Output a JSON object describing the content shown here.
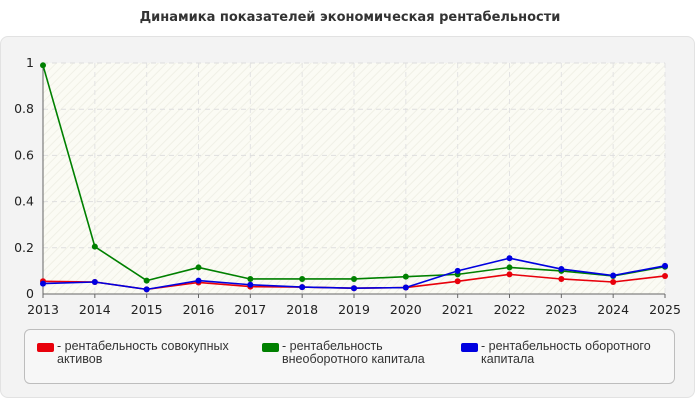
{
  "chart_data": {
    "type": "line",
    "title": "Динамика показателей экономическая рентабельности",
    "x": [
      "2013",
      "2014",
      "2015",
      "2016",
      "2017",
      "2018",
      "2019",
      "2020",
      "2021",
      "2022",
      "2023",
      "2024",
      "2025"
    ],
    "ylim": [
      0,
      1
    ],
    "yticks": [
      "0",
      "0.2",
      "0.4",
      "0.6",
      "0.8",
      "1"
    ],
    "grid": true,
    "legend_position": "bottom",
    "series": [
      {
        "name": "рентабельность совокупных активов",
        "legend_lines": [
          "- рентабельность совокупных",
          "активов"
        ],
        "color": "#e8000b",
        "values": [
          0.055,
          0.052,
          0.02,
          0.05,
          0.032,
          0.03,
          0.025,
          0.028,
          0.055,
          0.085,
          0.065,
          0.052,
          0.078
        ]
      },
      {
        "name": "рентабельность внеоборотного капитала",
        "legend_lines": [
          "- рентабельность",
          "внеоборотного капитала"
        ],
        "color": "#008000",
        "values": [
          0.99,
          0.205,
          0.058,
          0.115,
          0.065,
          0.065,
          0.065,
          0.075,
          0.085,
          0.115,
          0.1,
          0.078,
          0.118
        ]
      },
      {
        "name": "рентабельность оборотного капитала",
        "legend_lines": [
          "- рентабельность оборотного",
          "капитала"
        ],
        "color": "#0000e0",
        "values": [
          0.045,
          0.052,
          0.02,
          0.058,
          0.04,
          0.03,
          0.025,
          0.028,
          0.1,
          0.155,
          0.108,
          0.08,
          0.122
        ]
      }
    ]
  }
}
